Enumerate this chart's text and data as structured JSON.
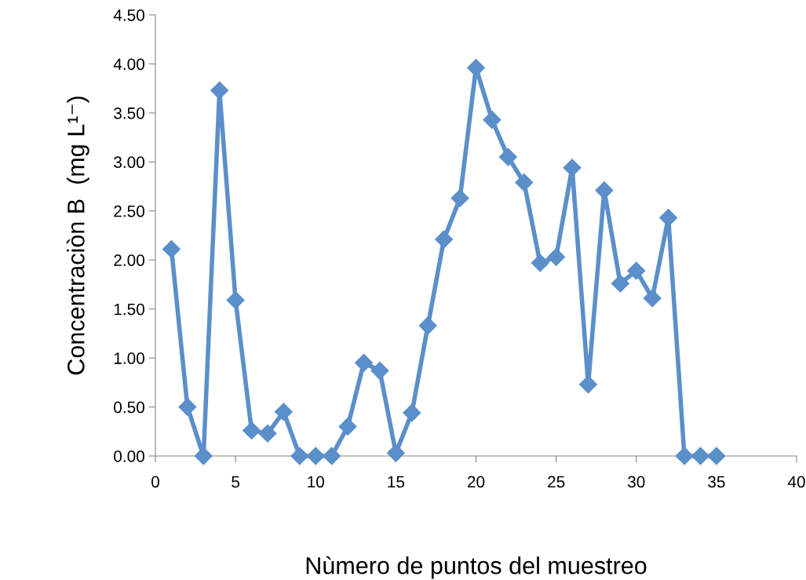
{
  "chart_data": {
    "type": "line",
    "xlabel": "Nùmero de puntos del muestreo",
    "ylabel": "Concentraciòn B  (mg L¹⁻)",
    "x": [
      1,
      2,
      3,
      4,
      5,
      6,
      7,
      8,
      9,
      10,
      11,
      12,
      13,
      14,
      15,
      16,
      17,
      18,
      19,
      20,
      21,
      22,
      23,
      24,
      25,
      26,
      27,
      28,
      29,
      30,
      31,
      32,
      33,
      34,
      35
    ],
    "series": [
      {
        "color": "#5b8fca",
        "values": [
          2.11,
          0.5,
          0,
          3.73,
          1.59,
          0.26,
          0.23,
          0.45,
          0,
          0,
          0,
          0.3,
          0.95,
          0.87,
          0.03,
          0.44,
          1.33,
          2.21,
          2.63,
          3.96,
          3.43,
          3.05,
          2.79,
          1.97,
          2.03,
          2.94,
          0.73,
          2.71,
          1.76,
          1.89,
          1.61,
          2.43,
          0,
          0,
          0
        ]
      }
    ],
    "marker": "diamond",
    "line_style": "solid",
    "grid": false,
    "legend": false,
    "xlim": [
      0,
      40
    ],
    "xticks": [
      0,
      5,
      10,
      15,
      20,
      25,
      30,
      35,
      40
    ],
    "ylim": [
      0,
      4.5
    ],
    "yticks": [
      {
        "value": 0,
        "label": "0.00"
      },
      {
        "value": 0.5,
        "label": "0.50"
      },
      {
        "value": 1,
        "label": "1.00"
      },
      {
        "value": 1.5,
        "label": "1.50"
      },
      {
        "value": 2,
        "label": "2.00"
      },
      {
        "value": 2.5,
        "label": "2.50"
      },
      {
        "value": 3,
        "label": "3.00"
      },
      {
        "value": 3.5,
        "label": "3.50"
      },
      {
        "value": 4,
        "label": "4.00"
      },
      {
        "value": 4.5,
        "label": "4.50"
      }
    ]
  }
}
